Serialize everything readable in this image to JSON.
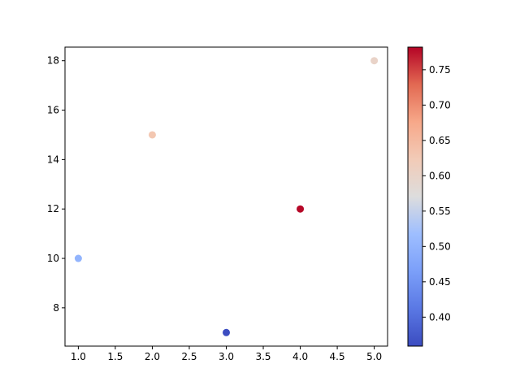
{
  "chart_data": {
    "type": "scatter",
    "title": "",
    "xlabel": "",
    "ylabel": "",
    "x": [
      1,
      2,
      3,
      4,
      5
    ],
    "y": [
      10,
      15,
      7,
      12,
      18
    ],
    "color_values": [
      0.5,
      0.63,
      0.36,
      0.78,
      0.6
    ],
    "xlim": [
      0.82,
      5.18
    ],
    "ylim": [
      6.45,
      18.55
    ],
    "xticks": [
      1.0,
      1.5,
      2.0,
      2.5,
      3.0,
      3.5,
      4.0,
      4.5,
      5.0
    ],
    "xtick_labels": [
      "1.0",
      "1.5",
      "2.0",
      "2.5",
      "3.0",
      "3.5",
      "4.0",
      "4.5",
      "5.0"
    ],
    "yticks": [
      8,
      10,
      12,
      14,
      16,
      18
    ],
    "ytick_labels": [
      "8",
      "10",
      "12",
      "14",
      "16",
      "18"
    ],
    "colorbar": {
      "colormap": "coolwarm",
      "range": [
        0.359,
        0.782
      ],
      "ticks": [
        0.4,
        0.45,
        0.5,
        0.55,
        0.6,
        0.65,
        0.7,
        0.75
      ],
      "tick_labels": [
        "0.40",
        "0.45",
        "0.50",
        "0.55",
        "0.60",
        "0.65",
        "0.70",
        "0.75"
      ]
    },
    "grid": false,
    "legend": "none"
  }
}
